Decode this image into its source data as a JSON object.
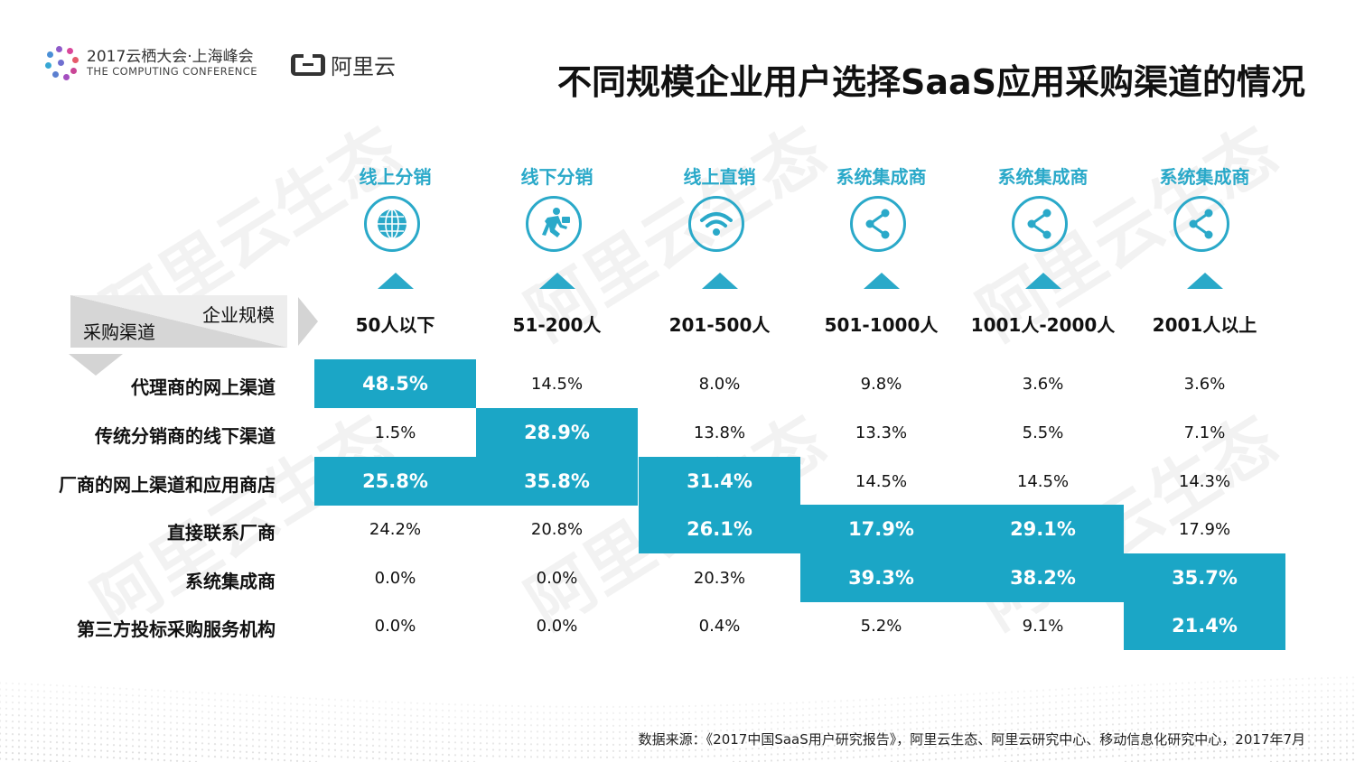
{
  "header": {
    "conference_cn": "2017云栖大会·上海峰会",
    "conference_en": "THE COMPUTING CONFERENCE",
    "brand": "阿里云",
    "title": "不同规模企业用户选择SaaS应用采购渠道的情况"
  },
  "watermark_text": "阿里云生态",
  "corner": {
    "top_label": "企业规模",
    "bottom_label": "采购渠道"
  },
  "colors": {
    "accent": "#1ba6c6",
    "accent_text": "#2aa9c9"
  },
  "chart_data": {
    "type": "table",
    "title": "不同规模企业用户选择SaaS应用采购渠道的情况",
    "columns": [
      {
        "size": "50人以下",
        "channel": "线上分销",
        "icon": "globe-icon"
      },
      {
        "size": "51-200人",
        "channel": "线下分销",
        "icon": "running-man-icon"
      },
      {
        "size": "201-500人",
        "channel": "线上直销",
        "icon": "wifi-icon"
      },
      {
        "size": "501-1000人",
        "channel": "系统集成商",
        "icon": "share-icon"
      },
      {
        "size": "1001人-2000人",
        "channel": "系统集成商",
        "icon": "share-icon"
      },
      {
        "size": "2001人以上",
        "channel": "系统集成商",
        "icon": "share-icon"
      }
    ],
    "rows": [
      {
        "label": "代理商的网上渠道",
        "values": [
          "48.5%",
          "14.5%",
          "8.0%",
          "9.8%",
          "3.6%",
          "3.6%"
        ],
        "highlight": [
          0
        ]
      },
      {
        "label": "传统分销商的线下渠道",
        "values": [
          "1.5%",
          "28.9%",
          "13.8%",
          "13.3%",
          "5.5%",
          "7.1%"
        ],
        "highlight": [
          1
        ]
      },
      {
        "label": "厂商的网上渠道和应用商店",
        "values": [
          "25.8%",
          "35.8%",
          "31.4%",
          "14.5%",
          "14.5%",
          "14.3%"
        ],
        "highlight": [
          0,
          1,
          2
        ]
      },
      {
        "label": "直接联系厂商",
        "values": [
          "24.2%",
          "20.8%",
          "26.1%",
          "17.9%",
          "29.1%",
          "17.9%"
        ],
        "highlight": [
          2,
          3,
          4
        ]
      },
      {
        "label": "系统集成商",
        "values": [
          "0.0%",
          "0.0%",
          "20.3%",
          "39.3%",
          "38.2%",
          "35.7%"
        ],
        "highlight": [
          3,
          4,
          5
        ]
      },
      {
        "label": "第三方投标采购服务机构",
        "values": [
          "0.0%",
          "0.0%",
          "0.4%",
          "5.2%",
          "9.1%",
          "21.4%"
        ],
        "highlight": [
          5
        ]
      }
    ]
  },
  "footer": {
    "source": "数据来源：《2017中国SaaS用户研究报告》，阿里云生态、阿里云研究中心、移动信息化研究中心，2017年7月"
  }
}
